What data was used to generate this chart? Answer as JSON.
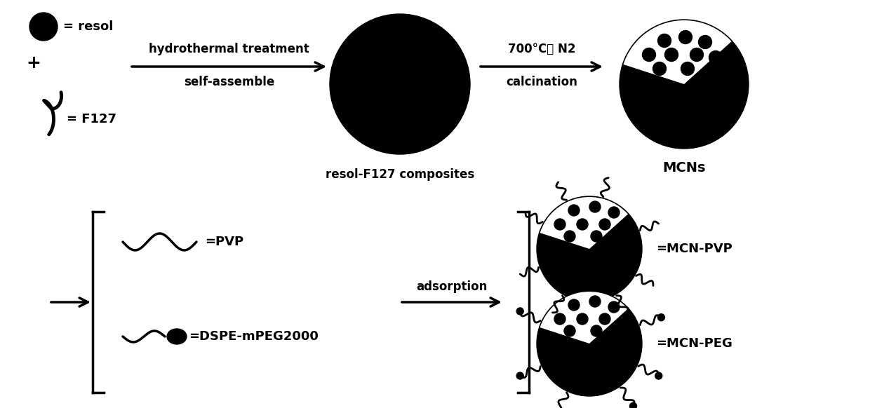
{
  "bg_color": "#ffffff",
  "top_row": {
    "resol_label": "= resol",
    "plus_label": "+",
    "f127_label": "= F127",
    "arrow1_label_top": "hydrothermal treatment",
    "arrow1_label_bot": "self-assemble",
    "composite_label": "resol-F127 composites",
    "arrow2_label_top": "700°C， N2",
    "arrow2_label_bot": "calcination",
    "mcn_label": "MCNs"
  },
  "bot_row": {
    "pvp_label": "=PVP",
    "dspe_label": "=DSPE-mPEG2000",
    "arrow_label": "adsorption",
    "mcn_pvp_label": "=MCN-PVP",
    "mcn_peg_label": "=MCN-PEG"
  }
}
